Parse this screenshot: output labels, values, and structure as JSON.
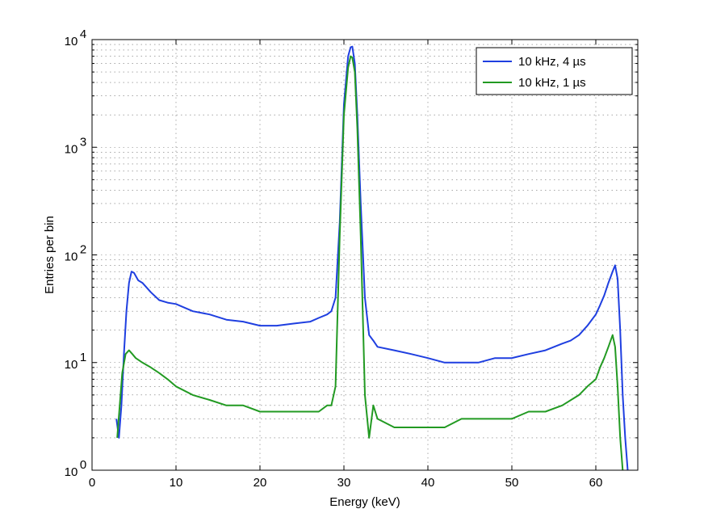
{
  "chart_data": {
    "type": "line",
    "xlabel": "Energy (keV)",
    "ylabel": "Entries per bin",
    "xlim": [
      0,
      65
    ],
    "ylim": [
      1,
      10000
    ],
    "yscale": "log",
    "grid": true,
    "legend_position": "top-right",
    "xticks": [
      "0",
      "10",
      "20",
      "30",
      "40",
      "50",
      "60"
    ],
    "yticks": [
      {
        "base": "10",
        "exp": "0"
      },
      {
        "base": "10",
        "exp": "1"
      },
      {
        "base": "10",
        "exp": "2"
      },
      {
        "base": "10",
        "exp": "3"
      },
      {
        "base": "10",
        "exp": "4"
      }
    ],
    "series": [
      {
        "name": "10 kHz, 4 µs",
        "color": "#1f3fe0",
        "x": [
          2.9,
          3.2,
          3.5,
          3.8,
          4.1,
          4.4,
          4.7,
          5.0,
          5.5,
          6.0,
          7.0,
          8.0,
          9.0,
          10.0,
          12.0,
          14.0,
          16.0,
          18.0,
          20.0,
          22.0,
          24.0,
          26.0,
          27.0,
          28.0,
          28.5,
          29.0,
          29.5,
          30.0,
          30.5,
          30.8,
          31.0,
          31.3,
          31.6,
          32.0,
          32.5,
          33.0,
          33.5,
          34.0,
          36.0,
          38.0,
          40.0,
          42.0,
          44.0,
          46.0,
          48.0,
          50.0,
          52.0,
          54.0,
          56.0,
          57.0,
          58.0,
          59.0,
          60.0,
          60.5,
          61.0,
          61.5,
          62.0,
          62.3,
          62.6,
          62.9,
          63.2,
          63.5,
          63.8
        ],
        "values": [
          3,
          2,
          4,
          12,
          30,
          55,
          70,
          68,
          58,
          55,
          45,
          38,
          36,
          35,
          30,
          28,
          25,
          24,
          22,
          22,
          23,
          24,
          26,
          28,
          30,
          40,
          200,
          2500,
          7000,
          8500,
          8600,
          6000,
          2000,
          300,
          40,
          18,
          16,
          14,
          13,
          12,
          11,
          10,
          10,
          10,
          11,
          11,
          12,
          13,
          15,
          16,
          18,
          22,
          28,
          34,
          42,
          55,
          70,
          80,
          60,
          20,
          5,
          2,
          1
        ]
      },
      {
        "name": "10 kHz, 1 µs",
        "color": "#229a22",
        "x": [
          3.0,
          3.3,
          3.6,
          4.0,
          4.4,
          4.8,
          5.2,
          6.0,
          7.0,
          8.0,
          9.0,
          10.0,
          12.0,
          14.0,
          16.0,
          18.0,
          20.0,
          22.0,
          24.0,
          26.0,
          27.0,
          28.0,
          28.5,
          29.0,
          29.5,
          30.0,
          30.5,
          30.8,
          31.0,
          31.3,
          31.6,
          32.0,
          32.5,
          33.0,
          33.5,
          34.0,
          36.0,
          38.0,
          40.0,
          42.0,
          44.0,
          46.0,
          48.0,
          50.0,
          52.0,
          54.0,
          56.0,
          58.0,
          59.0,
          60.0,
          60.5,
          61.0,
          61.5,
          62.0,
          62.3,
          62.6,
          62.9,
          63.2
        ],
        "values": [
          2,
          4,
          8,
          12,
          13,
          12,
          11,
          10,
          9,
          8,
          7,
          6,
          5,
          4.5,
          4,
          4,
          3.5,
          3.5,
          3.5,
          3.5,
          3.5,
          4,
          4,
          6,
          150,
          2000,
          5500,
          7000,
          6800,
          5000,
          1500,
          150,
          5,
          2,
          4,
          3,
          2.5,
          2.5,
          2.5,
          2.5,
          3,
          3,
          3,
          3,
          3.5,
          3.5,
          4,
          5,
          6,
          7,
          9,
          11,
          14,
          18,
          14,
          6,
          2,
          1
        ]
      }
    ]
  }
}
